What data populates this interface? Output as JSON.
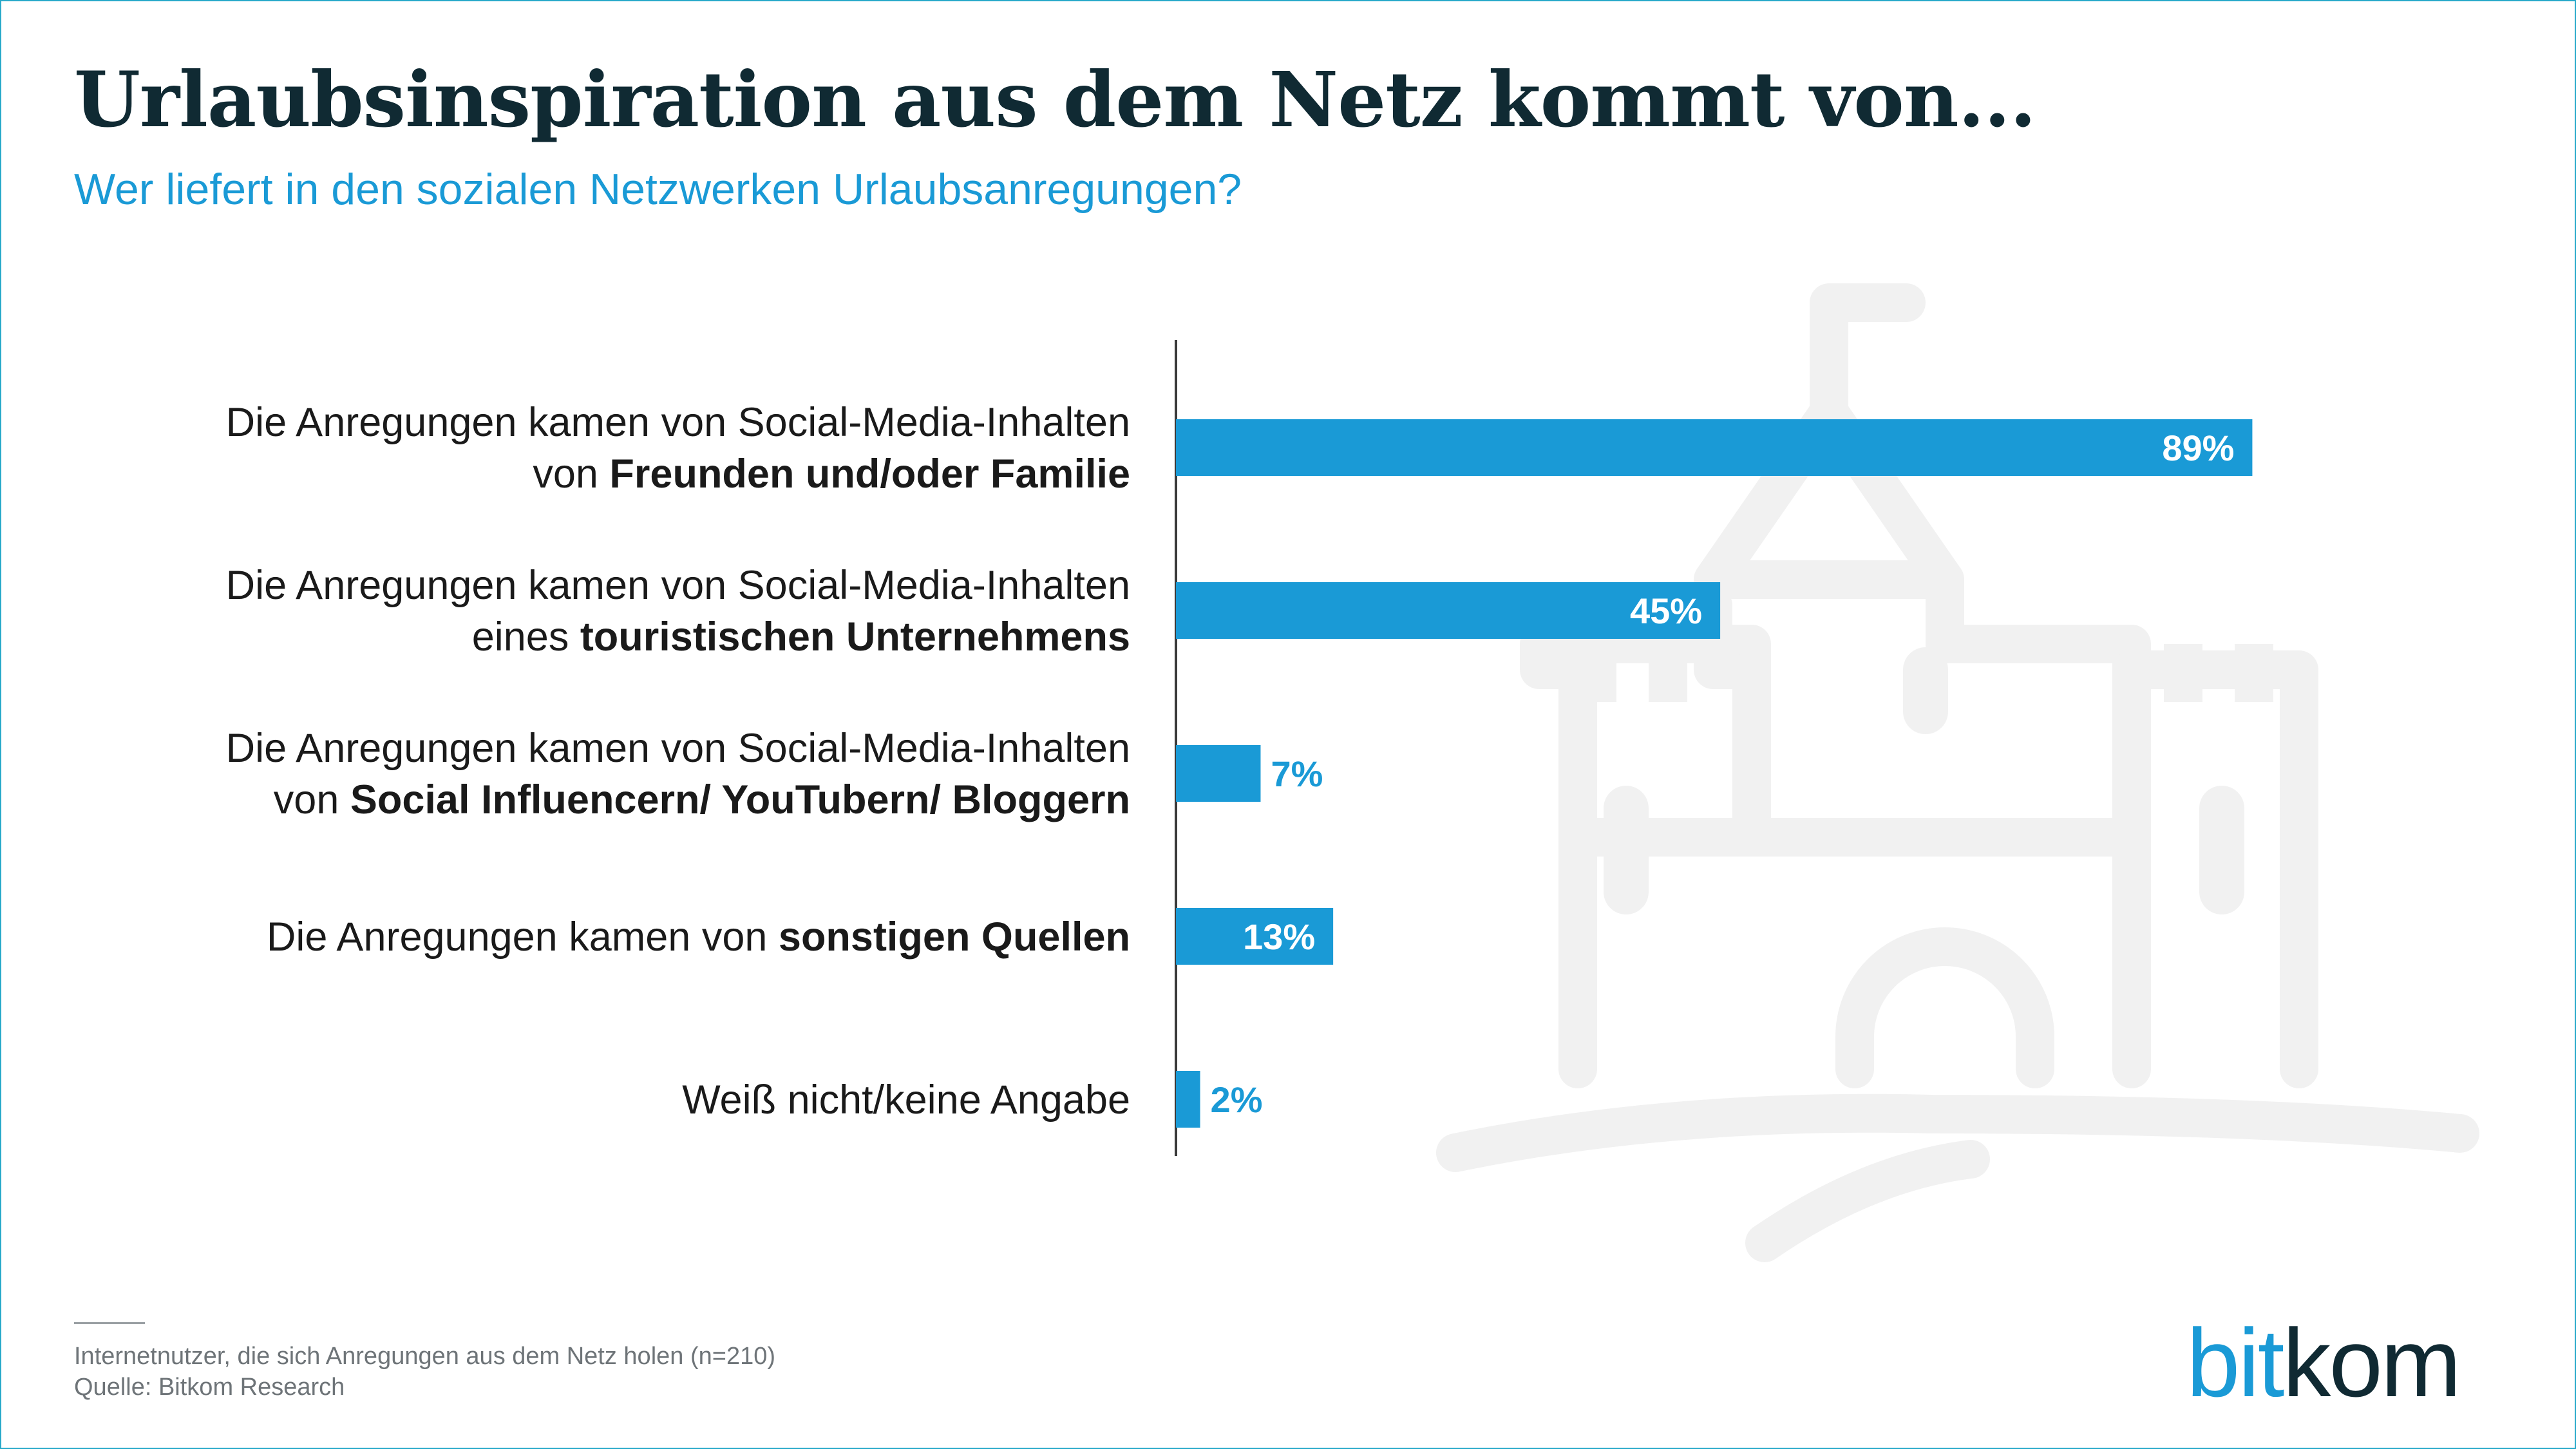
{
  "title": "Urlaubsinspiration aus dem Netz kommt von...",
  "subtitle": "Wer liefert in den sozialen Netzwerken Urlaubsanregungen?",
  "footer": {
    "note": "Internetnutzer, die sich Anregungen aus dem Netz holen (n=210)",
    "source": "Quelle: Bitkom Research"
  },
  "logo": {
    "part1": "bit",
    "part2": "kom"
  },
  "background_icon": "castle-icon",
  "colors": {
    "bar": "#1a9ad6",
    "title": "#102a33",
    "subtitle": "#1a9ad6",
    "border": "#29a9c9"
  },
  "chart_data": {
    "type": "bar",
    "orientation": "horizontal",
    "xlim": [
      0,
      100
    ],
    "grid": false,
    "categories": [
      {
        "lines": [
          [
            {
              "t": "Die Anregungen kamen von Social-Media-Inhalten",
              "b": false
            }
          ],
          [
            {
              "t": "von ",
              "b": false
            },
            {
              "t": "Freunden und/oder Familie",
              "b": true
            }
          ]
        ]
      },
      {
        "lines": [
          [
            {
              "t": "Die Anregungen kamen von Social-Media-Inhalten",
              "b": false
            }
          ],
          [
            {
              "t": "eines ",
              "b": false
            },
            {
              "t": "touristischen Unternehmens",
              "b": true
            }
          ]
        ]
      },
      {
        "lines": [
          [
            {
              "t": "Die Anregungen kamen von Social-Media-Inhalten",
              "b": false
            }
          ],
          [
            {
              "t": "von ",
              "b": false
            },
            {
              "t": "Social Influencern/ YouTubern/ Bloggern",
              "b": true
            }
          ]
        ]
      },
      {
        "lines": [
          [
            {
              "t": "Die Anregungen kamen von ",
              "b": false
            },
            {
              "t": "sonstigen Quellen",
              "b": true
            }
          ]
        ]
      },
      {
        "lines": [
          [
            {
              "t": "Weiß nicht/keine Angabe",
              "b": false
            }
          ]
        ]
      }
    ],
    "values": [
      89,
      45,
      7,
      13,
      2
    ],
    "value_labels": [
      "89%",
      "45%",
      "7%",
      "13%",
      "2%"
    ]
  }
}
